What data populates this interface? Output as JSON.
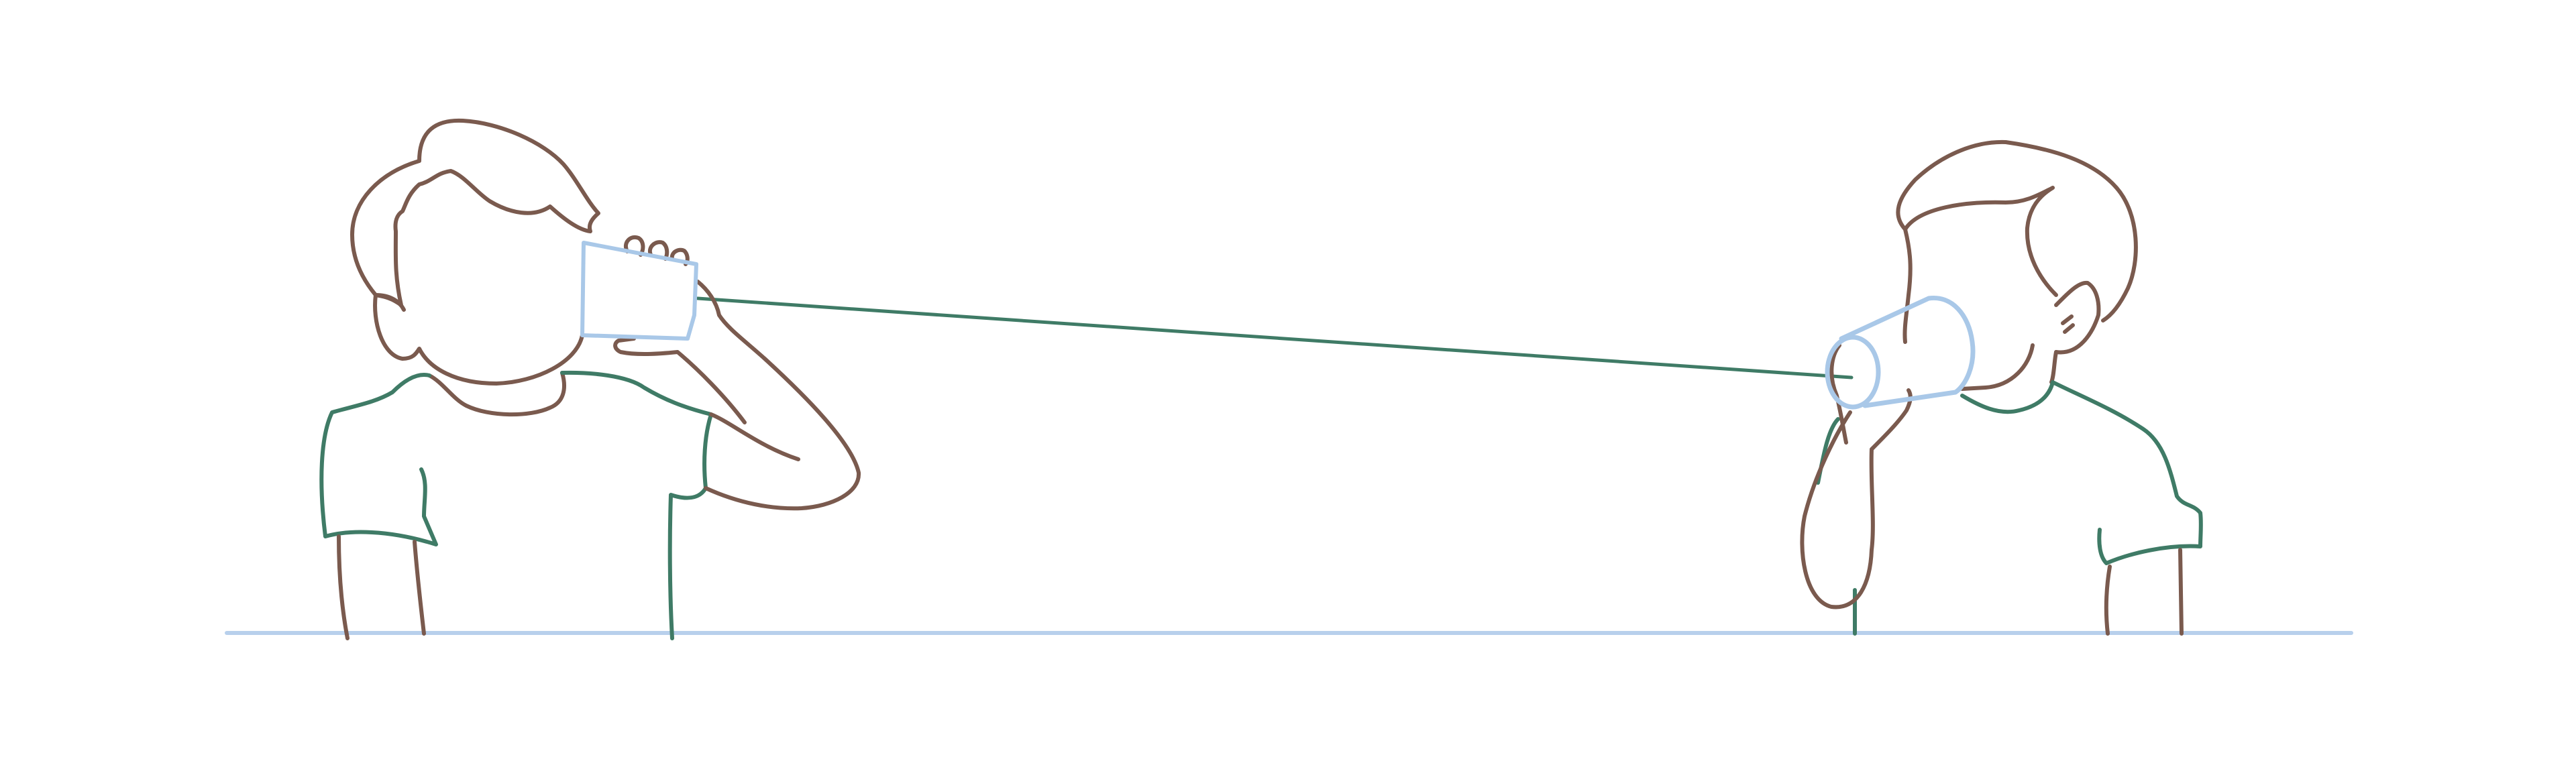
{
  "illustration": {
    "colors": {
      "outline": "#7a5a4e",
      "shirt": "#3f7b66",
      "cup": "#a9c8e8",
      "string": "#3f7b66",
      "ground": "#b8d0ec",
      "background": "#ffffff"
    },
    "figures": [
      {
        "role": "listener",
        "holds": "cup",
        "facing": "right"
      },
      {
        "role": "speaker",
        "holds": "cup",
        "facing": "left"
      }
    ]
  }
}
